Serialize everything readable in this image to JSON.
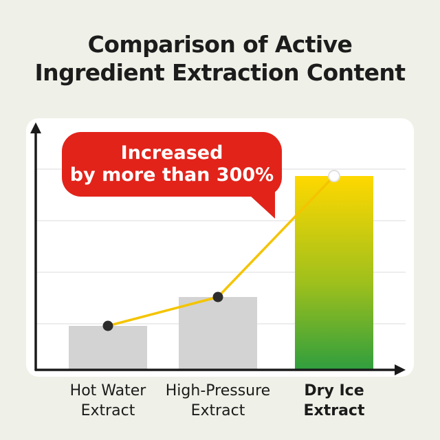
{
  "title": {
    "line1": "Comparison of Active",
    "line2": "Ingredient Extraction Content"
  },
  "chart_data": {
    "type": "bar",
    "title": "Comparison of Active Ingredient Extraction Content",
    "categories": [
      "Hot Water Extract",
      "High-Pressure Extract",
      "Dry Ice Extract"
    ],
    "values": [
      100,
      165,
      440
    ],
    "value_basis": "relative extraction content, Hot Water Extract = 100",
    "ylim": [
      0,
      500
    ],
    "grid": true,
    "legend": false,
    "labels": [
      {
        "line1": "Hot Water",
        "line2": "Extract",
        "emphasis": false
      },
      {
        "line1": "High-Pressure",
        "line2": "Extract",
        "emphasis": false
      },
      {
        "line1": "Dry Ice",
        "line2": "Extract",
        "emphasis": true
      }
    ],
    "overlay_line": {
      "type": "line",
      "values": [
        100,
        165,
        440
      ],
      "highlight_point": "Dry Ice Extract"
    },
    "annotation": {
      "line1": "Increased",
      "line2": "by more than 300%",
      "target": "Dry Ice Extract",
      "shape": "speech-bubble"
    },
    "colors": {
      "page_bg": "#eff0e7",
      "card_bg": "#ffffff",
      "title_text": "#1c1c1c",
      "bar_default": "#d3d3d3",
      "bar_highlight_gradient": [
        "#ffd800",
        "#9fc01c",
        "#2f9e3e"
      ],
      "line": "#f4c400",
      "dot": "#2d2d2d",
      "dot_highlight": "#ffffff",
      "annotation_bg": "#e2231a",
      "annotation_text": "#ffffff",
      "axis": "#1a1a1a",
      "gridline": "#ededed"
    }
  }
}
